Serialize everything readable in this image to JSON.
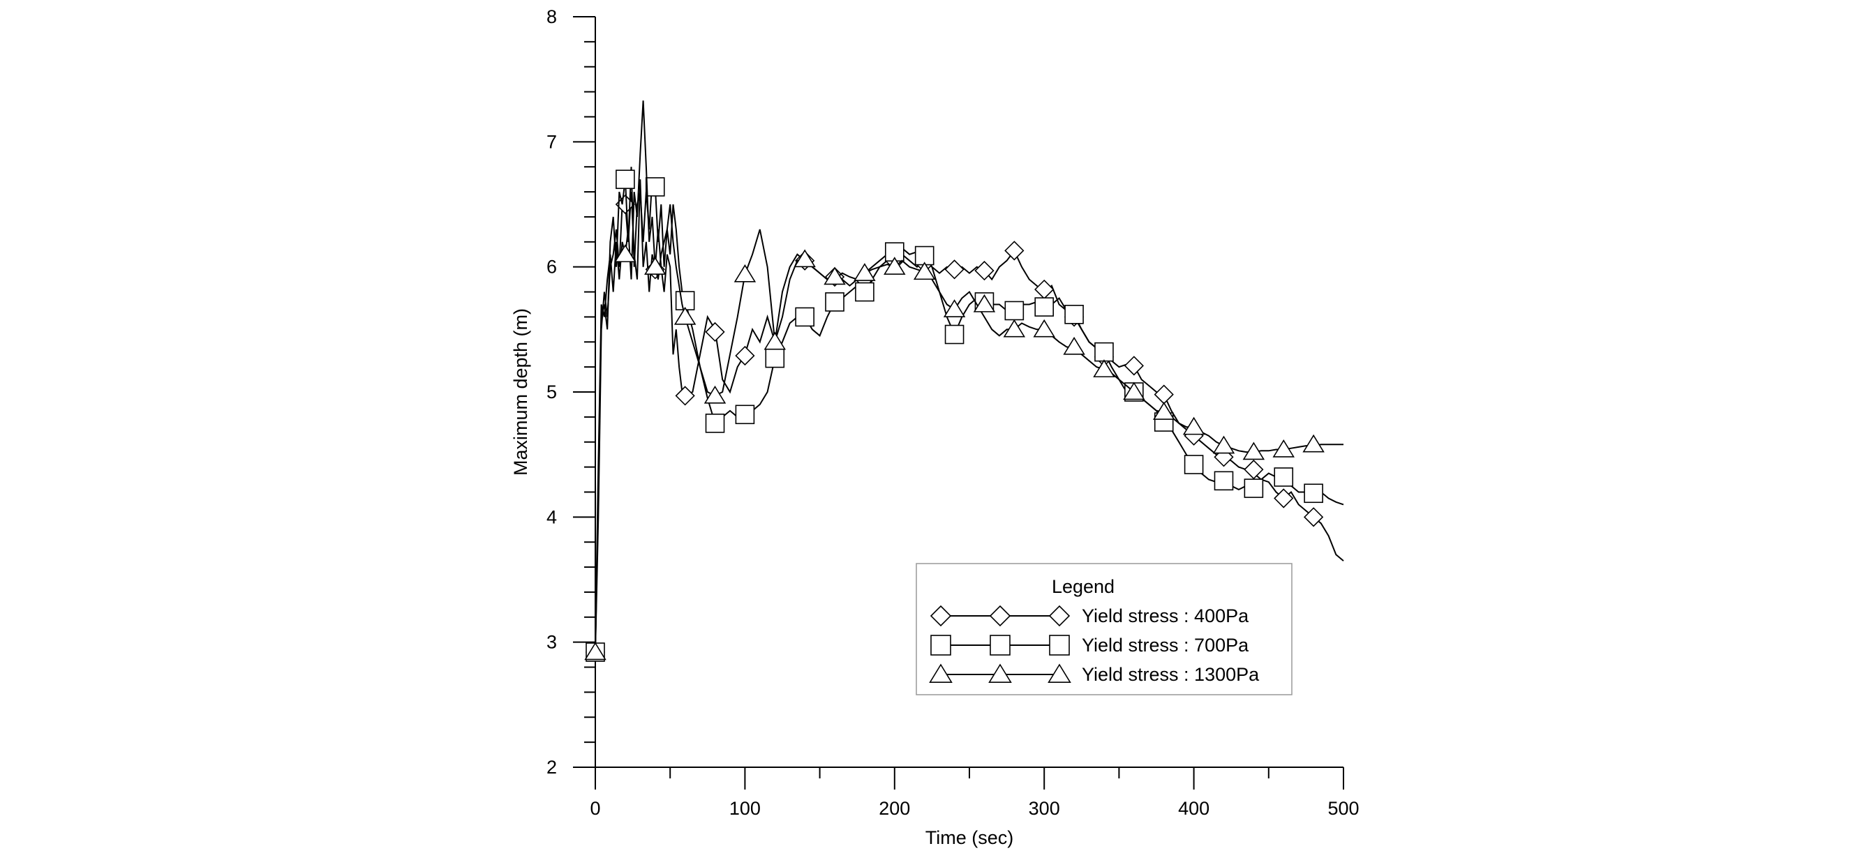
{
  "chart_data": {
    "type": "line",
    "title": "",
    "xlabel": "Time (sec)",
    "ylabel": "Maximum depth (m)",
    "xlim": [
      0,
      500
    ],
    "ylim": [
      2,
      8
    ],
    "xticks": [
      0,
      100,
      200,
      300,
      400,
      500
    ],
    "yticks": [
      2,
      3,
      4,
      5,
      6,
      7,
      8
    ],
    "grid": false,
    "legend": {
      "title": "Legend",
      "placement": "lower-right"
    },
    "series": [
      {
        "name": "Yield stress : 400Pa",
        "marker": "diamond",
        "x": [
          0,
          2,
          4,
          6,
          8,
          10,
          12,
          14,
          16,
          18,
          20,
          22,
          24,
          26,
          28,
          30,
          32,
          34,
          36,
          38,
          40,
          42,
          44,
          46,
          48,
          50,
          52,
          54,
          56,
          58,
          60,
          65,
          70,
          75,
          80,
          85,
          90,
          95,
          100,
          105,
          110,
          115,
          120,
          125,
          130,
          135,
          140,
          145,
          150,
          155,
          160,
          165,
          170,
          175,
          180,
          185,
          190,
          195,
          200,
          205,
          210,
          215,
          220,
          225,
          230,
          235,
          240,
          245,
          250,
          255,
          260,
          265,
          270,
          275,
          280,
          285,
          290,
          295,
          300,
          305,
          310,
          315,
          320,
          325,
          330,
          335,
          340,
          345,
          350,
          355,
          360,
          365,
          370,
          375,
          380,
          385,
          390,
          395,
          400,
          405,
          410,
          415,
          420,
          425,
          430,
          435,
          440,
          445,
          450,
          455,
          460,
          465,
          470,
          475,
          480,
          485,
          490,
          495,
          500
        ],
        "y": [
          2.92,
          4.0,
          5.5,
          5.8,
          5.6,
          6.0,
          6.1,
          6.3,
          6.0,
          6.5,
          6.5,
          6.2,
          6.6,
          6.1,
          5.9,
          6.7,
          6.0,
          6.2,
          5.8,
          6.1,
          6.0,
          6.3,
          6.0,
          5.8,
          6.1,
          6.0,
          5.3,
          5.5,
          5.2,
          5.0,
          4.97,
          5.0,
          5.3,
          5.6,
          5.5,
          5.1,
          5.0,
          5.2,
          5.3,
          5.5,
          5.4,
          5.6,
          5.4,
          5.8,
          6.0,
          6.1,
          6.05,
          6.0,
          5.95,
          5.9,
          5.95,
          5.9,
          5.85,
          5.9,
          5.95,
          6.0,
          6.05,
          6.1,
          6.05,
          6.1,
          6.05,
          6.0,
          6.05,
          6.0,
          5.95,
          6.0,
          5.98,
          6.0,
          5.95,
          6.0,
          5.97,
          5.9,
          6.0,
          6.05,
          6.13,
          6.0,
          5.9,
          5.85,
          5.8,
          5.85,
          5.7,
          5.65,
          5.6,
          5.5,
          5.4,
          5.35,
          5.28,
          5.25,
          5.2,
          5.22,
          5.21,
          5.1,
          5.05,
          5.0,
          4.98,
          4.85,
          4.75,
          4.7,
          4.65,
          4.6,
          4.55,
          4.5,
          4.48,
          4.45,
          4.4,
          4.38,
          4.35,
          4.3,
          4.28,
          4.2,
          4.15,
          4.2,
          4.1,
          4.05,
          4.0,
          3.95,
          3.85,
          3.7,
          3.65
        ]
      },
      {
        "name": "Yield stress : 700Pa",
        "marker": "square",
        "x": [
          0,
          2,
          4,
          6,
          8,
          10,
          12,
          14,
          16,
          18,
          20,
          22,
          24,
          26,
          28,
          30,
          32,
          34,
          36,
          38,
          40,
          42,
          44,
          46,
          48,
          50,
          52,
          54,
          56,
          58,
          60,
          65,
          70,
          75,
          80,
          85,
          90,
          95,
          100,
          105,
          110,
          115,
          120,
          125,
          130,
          135,
          140,
          145,
          150,
          155,
          160,
          165,
          170,
          175,
          180,
          185,
          190,
          195,
          200,
          205,
          210,
          215,
          220,
          225,
          230,
          235,
          240,
          245,
          250,
          255,
          260,
          265,
          270,
          275,
          280,
          285,
          290,
          295,
          300,
          305,
          310,
          315,
          320,
          325,
          330,
          335,
          340,
          345,
          350,
          355,
          360,
          365,
          370,
          375,
          380,
          385,
          390,
          395,
          400,
          405,
          410,
          415,
          420,
          425,
          430,
          435,
          440,
          445,
          450,
          455,
          460,
          465,
          470,
          475,
          480,
          485,
          490,
          495,
          500
        ],
        "y": [
          2.92,
          4.2,
          5.6,
          5.7,
          5.5,
          6.2,
          6.4,
          6.0,
          6.6,
          6.5,
          6.7,
          6.2,
          6.8,
          6.0,
          6.5,
          6.6,
          6.2,
          6.6,
          6.3,
          6.7,
          6.64,
          6.2,
          6.5,
          6.0,
          6.3,
          6.1,
          6.5,
          6.3,
          6.0,
          5.8,
          5.73,
          5.5,
          5.2,
          4.95,
          4.75,
          4.8,
          4.85,
          4.8,
          4.82,
          4.85,
          4.9,
          5.0,
          5.27,
          5.4,
          5.55,
          5.6,
          5.6,
          5.5,
          5.45,
          5.6,
          5.72,
          5.75,
          5.8,
          5.85,
          5.8,
          5.9,
          6.0,
          6.05,
          6.12,
          6.15,
          6.1,
          6.12,
          6.09,
          6.0,
          5.8,
          5.6,
          5.46,
          5.6,
          5.7,
          5.75,
          5.72,
          5.7,
          5.7,
          5.65,
          5.65,
          5.7,
          5.7,
          5.72,
          5.68,
          5.7,
          5.75,
          5.65,
          5.62,
          5.5,
          5.4,
          5.35,
          5.32,
          5.2,
          5.1,
          5.0,
          5.0,
          4.95,
          4.9,
          4.85,
          4.76,
          4.7,
          4.6,
          4.5,
          4.42,
          4.35,
          4.3,
          4.28,
          4.29,
          4.25,
          4.22,
          4.25,
          4.23,
          4.3,
          4.35,
          4.32,
          4.32,
          4.25,
          4.2,
          4.2,
          4.19,
          4.2,
          4.15,
          4.12,
          4.1
        ]
      },
      {
        "name": "Yield stress : 1300Pa",
        "marker": "triangle",
        "x": [
          0,
          2,
          4,
          6,
          8,
          10,
          12,
          14,
          16,
          18,
          20,
          22,
          24,
          26,
          28,
          30,
          32,
          34,
          36,
          38,
          40,
          42,
          44,
          46,
          48,
          50,
          52,
          54,
          56,
          58,
          60,
          65,
          70,
          75,
          80,
          85,
          90,
          95,
          100,
          105,
          110,
          115,
          120,
          125,
          130,
          135,
          140,
          145,
          150,
          155,
          160,
          165,
          170,
          175,
          180,
          185,
          190,
          195,
          200,
          205,
          210,
          215,
          220,
          225,
          230,
          235,
          240,
          245,
          250,
          255,
          260,
          265,
          270,
          275,
          280,
          285,
          290,
          295,
          300,
          305,
          310,
          315,
          320,
          325,
          330,
          335,
          340,
          345,
          350,
          355,
          360,
          365,
          370,
          375,
          380,
          385,
          390,
          395,
          400,
          405,
          410,
          415,
          420,
          425,
          430,
          435,
          440,
          445,
          450,
          455,
          460,
          465,
          470,
          475,
          480,
          485,
          490,
          495,
          500
        ],
        "y": [
          2.92,
          4.4,
          5.7,
          5.6,
          5.9,
          6.1,
          5.8,
          6.2,
          5.9,
          6.2,
          6.1,
          6.3,
          5.9,
          6.6,
          6.4,
          6.9,
          7.33,
          6.8,
          6.2,
          6.4,
          6.0,
          5.9,
          6.1,
          6.2,
          6.3,
          6.5,
          6.2,
          6.0,
          5.85,
          5.7,
          5.6,
          5.4,
          5.2,
          5.0,
          4.97,
          5.0,
          5.3,
          5.6,
          5.94,
          6.1,
          6.3,
          6.0,
          5.4,
          5.6,
          5.9,
          6.05,
          6.06,
          6.0,
          5.95,
          5.9,
          5.9,
          5.95,
          5.92,
          5.9,
          5.95,
          5.98,
          6.0,
          6.02,
          6.0,
          6.05,
          6.0,
          5.98,
          5.96,
          5.9,
          5.8,
          5.7,
          5.66,
          5.75,
          5.8,
          5.7,
          5.6,
          5.5,
          5.45,
          5.5,
          5.5,
          5.55,
          5.52,
          5.5,
          5.5,
          5.45,
          5.4,
          5.36,
          5.35,
          5.3,
          5.25,
          5.2,
          5.18,
          5.15,
          5.1,
          5.05,
          5.0,
          4.95,
          4.9,
          4.85,
          4.84,
          4.8,
          4.75,
          4.72,
          4.72,
          4.68,
          4.65,
          4.6,
          4.57,
          4.55,
          4.53,
          4.52,
          4.52,
          4.53,
          4.53,
          4.54,
          4.54,
          4.55,
          4.56,
          4.57,
          4.57,
          4.58,
          4.58,
          4.58,
          4.58
        ]
      }
    ],
    "markers_at": {
      "diamond": [
        [
          0,
          2.92
        ],
        [
          20,
          6.5
        ],
        [
          40,
          5.98
        ],
        [
          60,
          4.97
        ],
        [
          80,
          5.48
        ],
        [
          100,
          5.29
        ],
        [
          120,
          5.35
        ],
        [
          140,
          6.05
        ],
        [
          160,
          5.92
        ],
        [
          180,
          5.9
        ],
        [
          200,
          6.05
        ],
        [
          220,
          6.03
        ],
        [
          240,
          5.98
        ],
        [
          260,
          5.97
        ],
        [
          280,
          6.13
        ],
        [
          300,
          5.82
        ],
        [
          320,
          5.6
        ],
        [
          340,
          5.28
        ],
        [
          360,
          5.21
        ],
        [
          380,
          4.98
        ],
        [
          400,
          4.65
        ],
        [
          420,
          4.48
        ],
        [
          440,
          4.38
        ],
        [
          460,
          4.15
        ],
        [
          480,
          4.0
        ]
      ],
      "square": [
        [
          0,
          2.92
        ],
        [
          20,
          6.7
        ],
        [
          40,
          6.64
        ],
        [
          60,
          5.73
        ],
        [
          80,
          4.75
        ],
        [
          100,
          4.82
        ],
        [
          120,
          5.27
        ],
        [
          140,
          5.6
        ],
        [
          160,
          5.72
        ],
        [
          180,
          5.8
        ],
        [
          200,
          6.12
        ],
        [
          220,
          6.09
        ],
        [
          240,
          5.46
        ],
        [
          260,
          5.72
        ],
        [
          280,
          5.65
        ],
        [
          300,
          5.68
        ],
        [
          320,
          5.62
        ],
        [
          340,
          5.32
        ],
        [
          360,
          5.0
        ],
        [
          380,
          4.76
        ],
        [
          400,
          4.42
        ],
        [
          420,
          4.29
        ],
        [
          440,
          4.23
        ],
        [
          460,
          4.32
        ],
        [
          480,
          4.19
        ]
      ],
      "triangle": [
        [
          0,
          2.92
        ],
        [
          20,
          6.1
        ],
        [
          40,
          6.0
        ],
        [
          60,
          5.6
        ],
        [
          80,
          4.97
        ],
        [
          100,
          5.94
        ],
        [
          120,
          5.4
        ],
        [
          140,
          6.06
        ],
        [
          160,
          5.92
        ],
        [
          180,
          5.95
        ],
        [
          200,
          6.0
        ],
        [
          220,
          5.96
        ],
        [
          240,
          5.66
        ],
        [
          260,
          5.7
        ],
        [
          280,
          5.5
        ],
        [
          300,
          5.5
        ],
        [
          320,
          5.36
        ],
        [
          340,
          5.18
        ],
        [
          360,
          5.0
        ],
        [
          380,
          4.84
        ],
        [
          400,
          4.72
        ],
        [
          420,
          4.57
        ],
        [
          440,
          4.52
        ],
        [
          460,
          4.54
        ],
        [
          480,
          4.58
        ]
      ]
    }
  }
}
